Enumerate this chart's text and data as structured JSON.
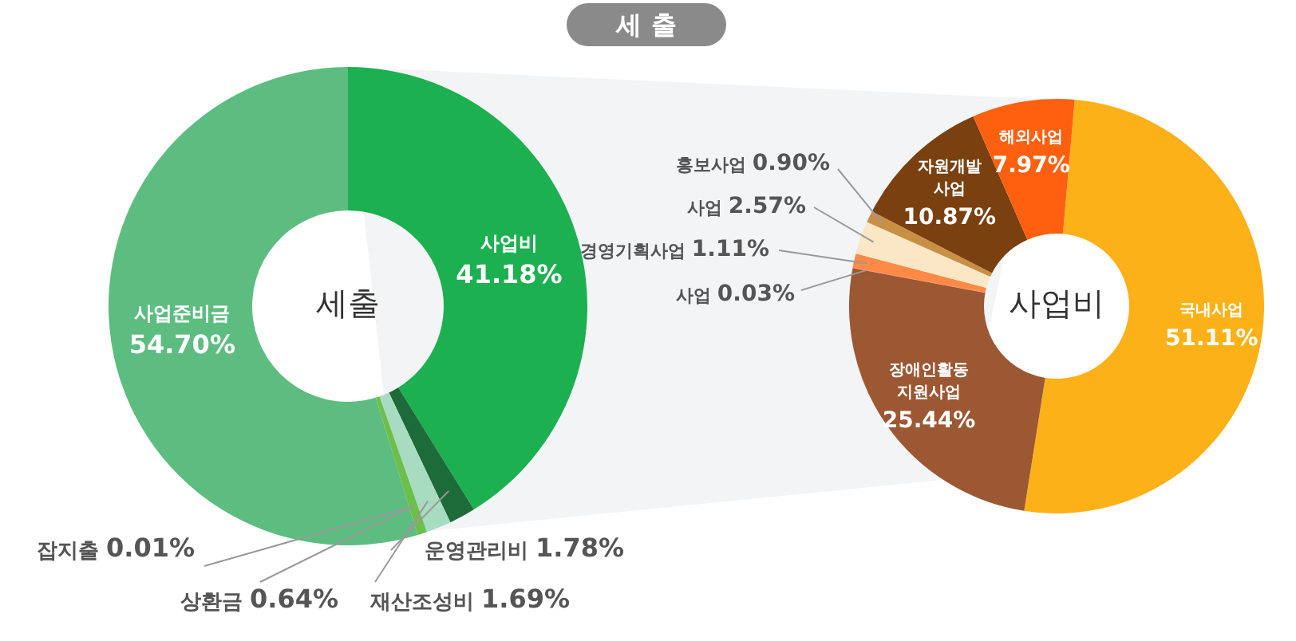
{
  "chart_data": [
    {
      "type": "donut",
      "title": "세출",
      "annotations": [
        "세 출"
      ],
      "categories": [
        "사업비",
        "운영관리비",
        "재산조성비",
        "상환금",
        "잡지출",
        "사업준비금"
      ],
      "values": [
        41.18,
        1.78,
        1.69,
        0.64,
        0.01,
        54.7
      ],
      "value_labels": [
        "41.18%",
        "1.78%",
        "1.69%",
        "0.64%",
        "0.01%",
        "54.70%"
      ],
      "colors": [
        "#1db050",
        "#1e6b3a",
        "#a8dcc0",
        "#6cc04a",
        "#2e5e3a",
        "#5dbd80"
      ]
    },
    {
      "type": "donut",
      "title": "사업비",
      "categories": [
        "국내사업",
        "장애인활동 지원사업",
        "사업",
        "경영기획사업",
        "사업",
        "홍보사업",
        "자원개발 사업",
        "해외사업"
      ],
      "values": [
        51.11,
        25.44,
        0.03,
        1.11,
        2.57,
        0.9,
        10.87,
        7.97
      ],
      "value_labels": [
        "51.11%",
        "25.44%",
        "0.03%",
        "1.11%",
        "2.57%",
        "0.90%",
        "10.87%",
        "7.97%"
      ],
      "colors": [
        "#fbb117",
        "#9c5833",
        "#e8683a",
        "#ff8a45",
        "#fbe6c6",
        "#c98f45",
        "#7a4010",
        "#ff6010"
      ]
    }
  ]
}
